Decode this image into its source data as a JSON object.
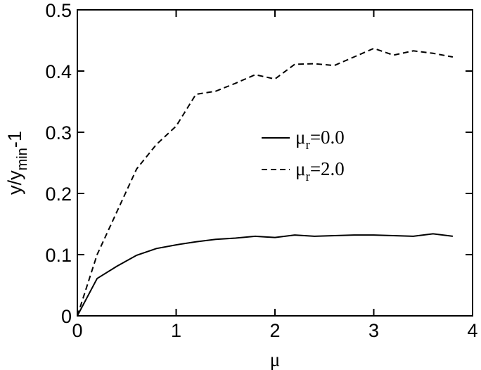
{
  "chart_data": {
    "type": "line",
    "xlabel": "μ",
    "ylabel": "y/ymin-1",
    "x": [
      0,
      0.2,
      0.4,
      0.6,
      0.8,
      1.0,
      1.2,
      1.4,
      1.6,
      1.8,
      2.0,
      2.2,
      2.4,
      2.6,
      2.8,
      3.0,
      3.2,
      3.4,
      3.6,
      3.8
    ],
    "series": [
      {
        "name": "μr=0.0",
        "color": "#000000",
        "dash": "solid",
        "values": [
          0,
          0.061,
          0.081,
          0.099,
          0.11,
          0.116,
          0.121,
          0.125,
          0.127,
          0.13,
          0.128,
          0.132,
          0.13,
          0.131,
          0.132,
          0.132,
          0.131,
          0.13,
          0.134,
          0.13
        ]
      },
      {
        "name": "μr=2.0",
        "color": "#000000",
        "dash": "dashed",
        "values": [
          0,
          0.1,
          0.17,
          0.24,
          0.28,
          0.31,
          0.362,
          0.367,
          0.38,
          0.394,
          0.387,
          0.411,
          0.412,
          0.409,
          0.423,
          0.437,
          0.426,
          0.433,
          0.429,
          0.423
        ]
      }
    ],
    "xlim": [
      0,
      4
    ],
    "xticks": [
      0,
      1,
      2,
      3,
      4
    ],
    "ylim": [
      0,
      0.5
    ],
    "yticks": [
      0,
      0.1,
      0.2,
      0.3,
      0.4,
      0.5
    ],
    "grid": false
  }
}
